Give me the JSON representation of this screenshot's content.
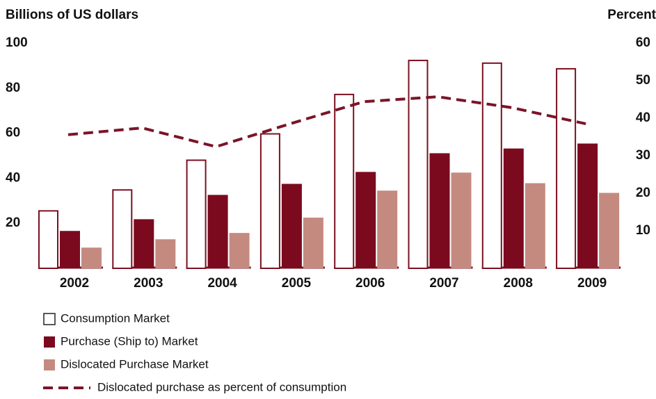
{
  "chart_data": {
    "type": "bar",
    "y_label": "Billions of US dollars",
    "y2_label": "Percent",
    "categories": [
      "2002",
      "2003",
      "2004",
      "2005",
      "2006",
      "2007",
      "2008",
      "2009"
    ],
    "series": [
      {
        "name": "Consumption Market",
        "color": "#7b1020",
        "style": "outline",
        "values": [
          25.5,
          34.8,
          48,
          59.7,
          77.2,
          92.3,
          91.1,
          88.6
        ]
      },
      {
        "name": "Purchase (Ship to) Market",
        "color": "#7b0a1e",
        "values": [
          16.6,
          21.8,
          32.6,
          37.5,
          42.8,
          51.1,
          53.2,
          55.4
        ]
      },
      {
        "name": "Dislocated Purchase Market",
        "color": "#c48a80",
        "values": [
          9.2,
          12.9,
          15.7,
          22.5,
          34.5,
          42.5,
          37.8,
          33.5
        ]
      },
      {
        "name": "Dislocated purchase as percent of consumption",
        "color": "#7b1428",
        "type": "line",
        "dashed": true,
        "axis": "y2",
        "values": [
          35.6,
          37.4,
          32.4,
          38.5,
          44.4,
          45.7,
          42.8,
          38.5
        ]
      }
    ],
    "ylim": [
      0,
      100
    ],
    "yticks": [
      20,
      40,
      60,
      80,
      100
    ],
    "y2lim": [
      0,
      60
    ],
    "y2ticks": [
      10,
      20,
      30,
      40,
      50,
      60
    ]
  }
}
